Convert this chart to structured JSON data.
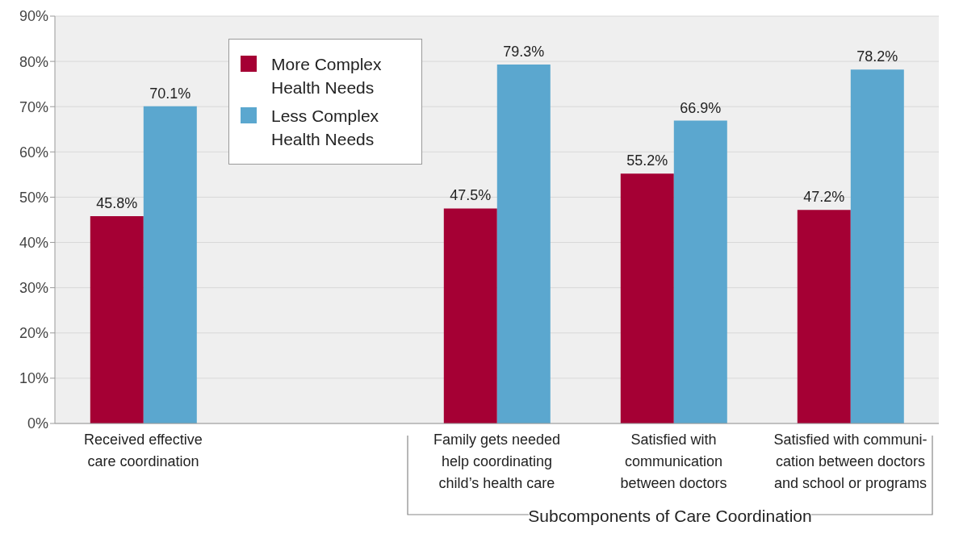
{
  "chart_data": {
    "type": "bar",
    "xlabel": "Subcomponents of Care Coordination",
    "categories": [
      "Received effective\ncare coordination",
      null,
      "Family gets needed\nhelp coordinating\nchild’s health care",
      "Satisfied with\ncommunication\nbetween doctors",
      "Satisfied with communi-\ncation between doctors\nand school or programs"
    ],
    "series": [
      {
        "name": "More Complex Health Needs",
        "color": "#a50034",
        "values": [
          45.8,
          null,
          47.5,
          55.2,
          47.2
        ],
        "value_labels": [
          "45.8%",
          null,
          "47.5%",
          "55.2%",
          "47.2%"
        ]
      },
      {
        "name": "Less Complex Health Needs",
        "color": "#5ba7cf",
        "values": [
          70.1,
          null,
          79.3,
          66.9,
          78.2
        ],
        "value_labels": [
          "70.1%",
          null,
          "79.3%",
          "66.9%",
          "78.2%"
        ]
      }
    ],
    "ylim": [
      0,
      90
    ],
    "yticks": [
      {
        "value": 0,
        "label": "0%"
      },
      {
        "value": 10,
        "label": "10%"
      },
      {
        "value": 20,
        "label": "20%"
      },
      {
        "value": 30,
        "label": "30%"
      },
      {
        "value": 40,
        "label": "40%"
      },
      {
        "value": 50,
        "label": "50%"
      },
      {
        "value": 60,
        "label": "60%"
      },
      {
        "value": 70,
        "label": "70%"
      },
      {
        "value": 80,
        "label": "80%"
      },
      {
        "value": 90,
        "label": "90%"
      }
    ],
    "grid": "y",
    "legend": "top left"
  }
}
